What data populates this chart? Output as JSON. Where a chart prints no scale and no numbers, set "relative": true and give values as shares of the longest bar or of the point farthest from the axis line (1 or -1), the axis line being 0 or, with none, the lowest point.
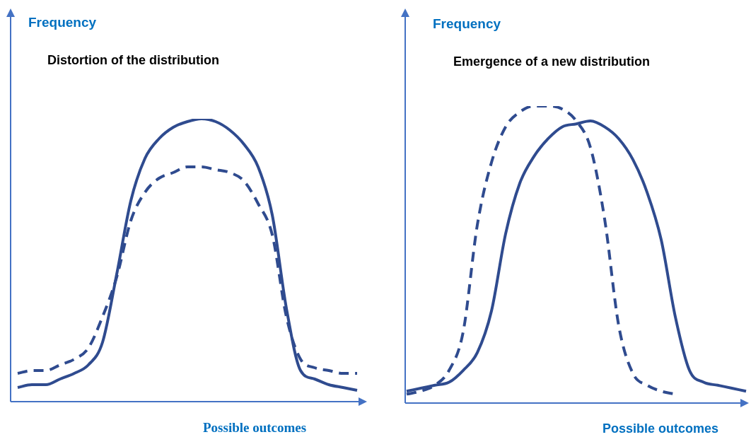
{
  "chart_data": [
    {
      "type": "line",
      "title": "Distortion of the distribution",
      "xlabel": "Possible outcomes",
      "ylabel": "Frequency",
      "relative": true,
      "legend": false,
      "marker": "none",
      "categories": [
        null,
        null,
        null,
        null,
        null,
        null,
        null,
        null,
        null,
        null,
        null,
        null,
        null,
        null,
        null,
        null,
        null,
        null,
        null,
        null,
        null,
        null,
        null,
        null,
        null
      ],
      "series": [
        {
          "color": "#2f4b8f",
          "line_style": "solid",
          "values": [
            0.05,
            0.06,
            0.06,
            0.08,
            0.1,
            0.13,
            0.21,
            0.45,
            0.71,
            0.86,
            0.93,
            0.97,
            0.99,
            1,
            0.99,
            0.96,
            0.91,
            0.83,
            0.66,
            0.33,
            0.11,
            0.08,
            0.06,
            0.05,
            0.04
          ]
        },
        {
          "color": "#2f4b8f",
          "line_style": "dashed",
          "values": [
            0.1,
            0.11,
            0.11,
            0.13,
            0.15,
            0.19,
            0.3,
            0.44,
            0.64,
            0.74,
            0.79,
            0.81,
            0.83,
            0.83,
            0.82,
            0.81,
            0.78,
            0.7,
            0.59,
            0.3,
            0.15,
            0.12,
            0.11,
            0.1,
            0.1
          ]
        }
      ]
    },
    {
      "type": "line",
      "title": "Emergence of a new distribution",
      "xlabel": "Possible outcomes",
      "ylabel": "Frequency",
      "relative": true,
      "legend": false,
      "marker": "none",
      "categories": [
        null,
        null,
        null,
        null,
        null,
        null,
        null,
        null,
        null,
        null,
        null,
        null,
        null,
        null,
        null,
        null,
        null,
        null,
        null,
        null,
        null,
        null,
        null,
        null,
        null
      ],
      "series": [
        {
          "color": "#2f4b8f",
          "line_style": "solid",
          "values": [
            0.04,
            0.05,
            0.06,
            0.07,
            0.11,
            0.17,
            0.31,
            0.57,
            0.74,
            0.83,
            0.89,
            0.93,
            0.94,
            0.95,
            0.93,
            0.89,
            0.82,
            0.71,
            0.55,
            0.29,
            0.11,
            0.07,
            0.06,
            0.05,
            0.04
          ]
        },
        {
          "color": "#2f4b8f",
          "line_style": "dashed",
          "values": [
            0.03,
            0.04,
            0.06,
            0.11,
            0.24,
            0.6,
            0.81,
            0.93,
            0.98,
            1,
            1,
            0.99,
            0.95,
            0.86,
            0.62,
            0.26,
            0.1,
            0.06,
            0.04,
            0.03,
            null,
            null,
            null,
            null,
            null
          ]
        }
      ]
    }
  ]
}
